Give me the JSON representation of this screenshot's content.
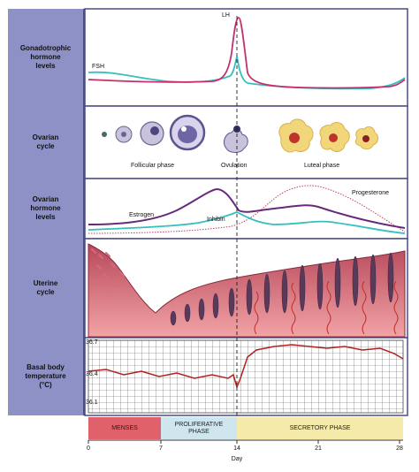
{
  "panels": {
    "gonadotrophic": "Gonadotrophic\nhormone\nlevels",
    "ovarian_cycle": "Ovarian\ncycle",
    "ovarian_hormone": "Ovarian\nhormone\nlevels",
    "uterine": "Uterine\ncycle",
    "basal": "Basal body\ntemperature\n(°C)"
  },
  "labels": {
    "lh": "LH",
    "fsh": "FSH",
    "follicular": "Follicular phase",
    "ovulation": "Ovulation",
    "luteal": "Luteal phase",
    "estrogen": "Estrogen",
    "inhibin": "Inhibin",
    "progesterone": "Progesterone"
  },
  "temperature_ticks": [
    "36.7",
    "36.4",
    "36.1"
  ],
  "phases": {
    "menses": "MENSES",
    "proliferative": "PROLIFERATIVE\nPHASE",
    "secretory": "SECRETORY PHASE"
  },
  "day_ticks": [
    "0",
    "7",
    "14",
    "21",
    "28"
  ],
  "day_label": "Day",
  "colors": {
    "lh": "#c4306e",
    "fsh": "#35c0c0",
    "estrogen": "#6a2a7a",
    "progesterone": "#c04060",
    "temperature": "#b42020",
    "panel_side": "#8e91c6",
    "menses": "#e0616a",
    "proliferative": "#cfe6ef",
    "secretory": "#f6eaaa"
  }
}
